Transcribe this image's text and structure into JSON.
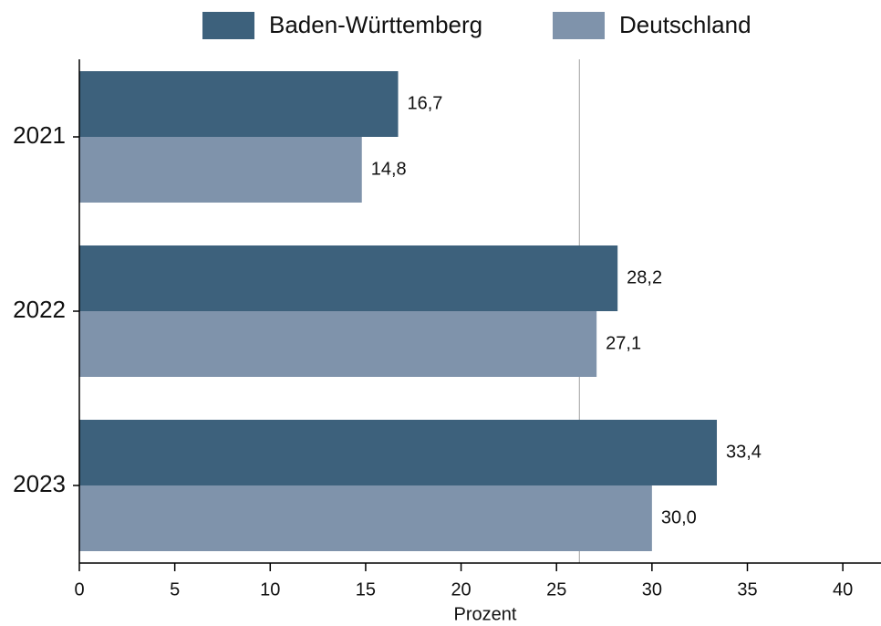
{
  "chart_data": {
    "type": "bar",
    "orientation": "horizontal",
    "categories": [
      "2021",
      "2022",
      "2023"
    ],
    "series": [
      {
        "name": "Baden-Württemberg",
        "color": "#3d617c",
        "values": [
          16.7,
          28.2,
          33.4
        ],
        "value_labels": [
          "16,7",
          "28,2",
          "33,4"
        ]
      },
      {
        "name": "Deutschland",
        "color": "#7f93ab",
        "values": [
          14.8,
          27.1,
          30.0
        ],
        "value_labels": [
          "14,8",
          "27,1",
          "30,0"
        ]
      }
    ],
    "x_label": "Prozent",
    "xlim": [
      0,
      42
    ],
    "xticks": [
      0,
      5,
      10,
      15,
      20,
      25,
      30,
      35,
      40
    ],
    "reference_line": 26.2,
    "reference_line_color": "#b0b0b0",
    "legend": "top"
  }
}
